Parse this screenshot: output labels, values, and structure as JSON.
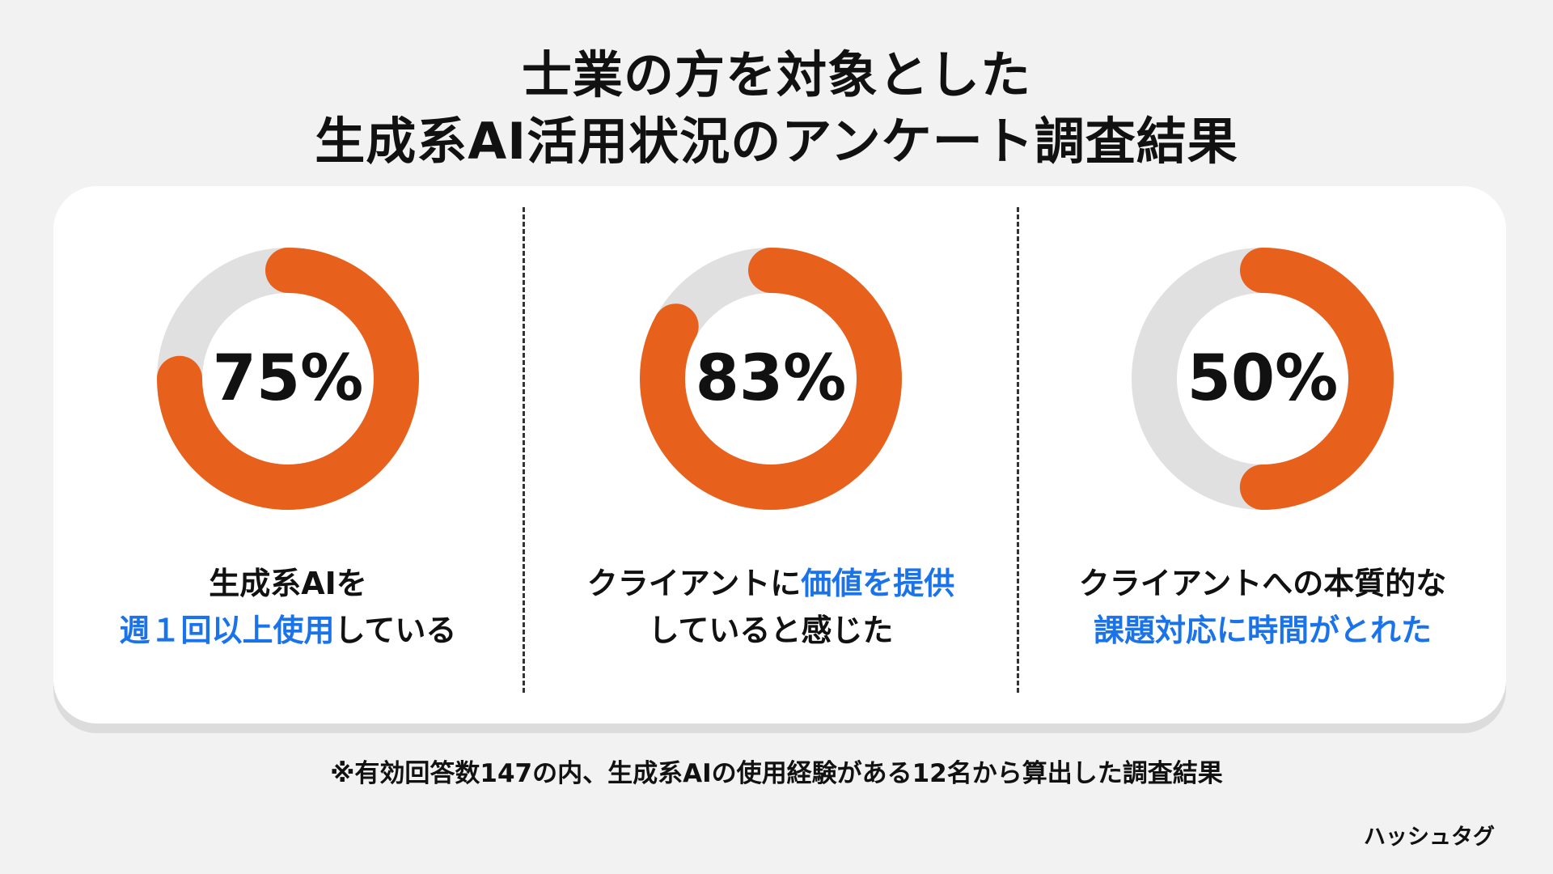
{
  "title": {
    "line1": "士業の方を対象とした",
    "line2": "生成系AI活用状況のアンケート調査結果"
  },
  "colors": {
    "accent": "#E8611C",
    "track": "#E0E0E0",
    "highlight": "#1A73E8",
    "background": "#F2F2F2",
    "card": "#FFFFFF"
  },
  "chart_data": [
    {
      "type": "pie",
      "value": 75,
      "label": "75%",
      "caption": [
        [
          {
            "text": "生成系AIを",
            "highlight": false
          }
        ],
        [
          {
            "text": "週１回以上使用",
            "highlight": true
          },
          {
            "text": "している",
            "highlight": false
          }
        ]
      ]
    },
    {
      "type": "pie",
      "value": 83,
      "label": "83%",
      "caption": [
        [
          {
            "text": "クライアントに",
            "highlight": false
          },
          {
            "text": "価値を提供",
            "highlight": true
          }
        ],
        [
          {
            "text": "していると感じた",
            "highlight": false
          }
        ]
      ]
    },
    {
      "type": "pie",
      "value": 50,
      "label": "50%",
      "caption": [
        [
          {
            "text": "クライアントへの本質的な",
            "highlight": false
          }
        ],
        [
          {
            "text": "課題対応に時間がとれた",
            "highlight": true
          }
        ]
      ]
    }
  ],
  "footnote": "※有効回答数147の内、生成系AIの使用経験がある12名から算出した調査結果",
  "brand": "ハッシュタグ"
}
